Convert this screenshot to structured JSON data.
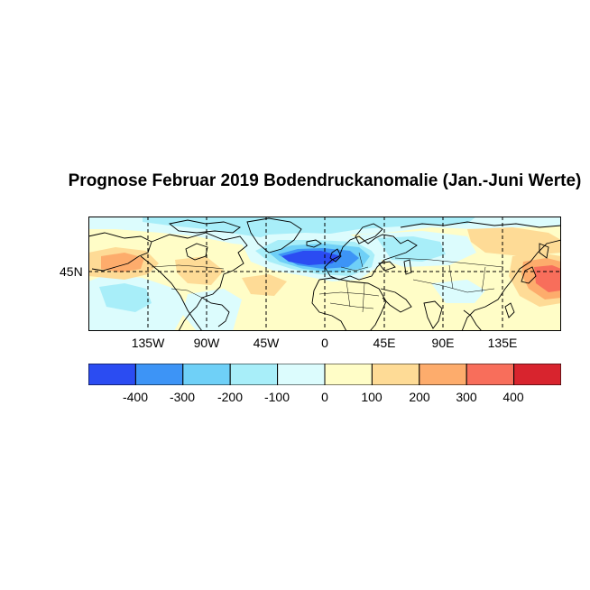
{
  "title": "Prognose Februar 2019 Bodendruckanomalie (Jan.-Juni Werte)",
  "map": {
    "lat_labels": [
      {
        "text": "45N",
        "lat": 45
      }
    ],
    "lon_labels": [
      {
        "text": "135W",
        "lon": -135
      },
      {
        "text": "90W",
        "lon": -90
      },
      {
        "text": "45W",
        "lon": -45
      },
      {
        "text": "0",
        "lon": 0
      },
      {
        "text": "45E",
        "lon": 45
      },
      {
        "text": "90E",
        "lon": 90
      },
      {
        "text": "135E",
        "lon": 135
      }
    ]
  },
  "colorbar": {
    "colors": [
      "#2b4cf2",
      "#3d94f6",
      "#6fd0f7",
      "#a8eef9",
      "#dcfcfd",
      "#fffdc7",
      "#fedb96",
      "#fdac6c",
      "#f86e5b",
      "#d8242e"
    ],
    "labels": [
      "-400",
      "-300",
      "-200",
      "-100",
      "0",
      "100",
      "200",
      "300",
      "400"
    ]
  }
}
